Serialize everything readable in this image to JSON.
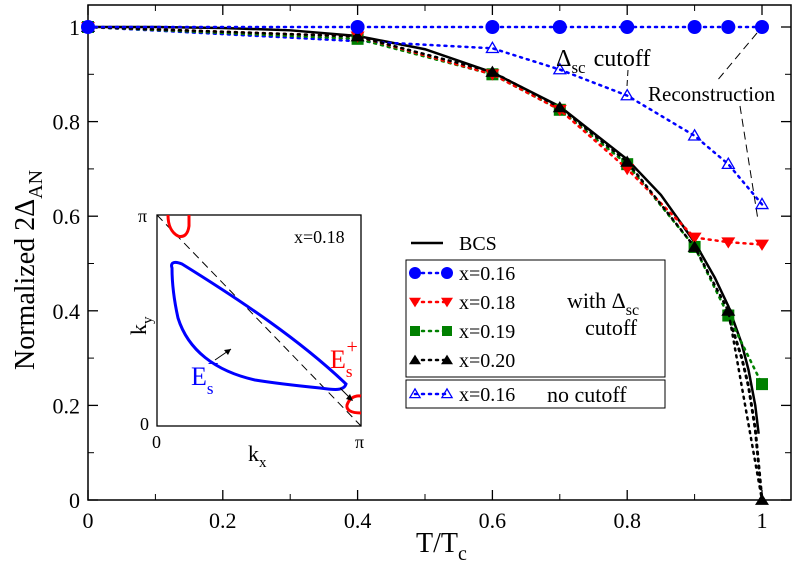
{
  "chart_data": {
    "type": "line",
    "xlabel": "T/T",
    "xlabel_sub": "c",
    "ylabel": "Normalized 2Δ",
    "ylabel_sub": "AN",
    "xlim": [
      0,
      1.04
    ],
    "ylim": [
      0,
      1.04
    ],
    "xticks": [
      {
        "v": 0,
        "label": "0"
      },
      {
        "v": 0.2,
        "label": "0.2"
      },
      {
        "v": 0.4,
        "label": "0.4"
      },
      {
        "v": 0.6,
        "label": "0.6"
      },
      {
        "v": 0.8,
        "label": "0.8"
      },
      {
        "v": 1,
        "label": "1"
      }
    ],
    "yticks": [
      {
        "v": 0,
        "label": "0"
      },
      {
        "v": 0.2,
        "label": "0.2"
      },
      {
        "v": 0.4,
        "label": "0.4"
      },
      {
        "v": 0.6,
        "label": "0.6"
      },
      {
        "v": 0.8,
        "label": "0.8"
      },
      {
        "v": 1,
        "label": "1"
      }
    ],
    "bcs": {
      "name": "BCS",
      "color": "#000000",
      "x": [
        0,
        0.1,
        0.2,
        0.3,
        0.4,
        0.5,
        0.6,
        0.7,
        0.8,
        0.85,
        0.9,
        0.93,
        0.95,
        0.97,
        0.98,
        0.99,
        0.995
      ],
      "y": [
        1,
        1,
        0.998,
        0.993,
        0.981,
        0.953,
        0.904,
        0.832,
        0.72,
        0.645,
        0.545,
        0.47,
        0.41,
        0.33,
        0.275,
        0.2,
        0.14
      ]
    },
    "bcs_dotted": {
      "x": [
        0.95,
        0.97,
        0.98,
        0.99,
        1.0
      ],
      "y": [
        0.39,
        0.3,
        0.24,
        0.15,
        0.0
      ]
    },
    "series": [
      {
        "name": "x=0.16",
        "color": "#0000ff",
        "marker": "circle",
        "x": [
          0,
          0.4,
          0.6,
          0.7,
          0.8,
          0.9,
          0.95,
          1.0
        ],
        "y": [
          1,
          1,
          1,
          1,
          1,
          1,
          1,
          1
        ]
      },
      {
        "name": "x=0.18",
        "color": "#ff0000",
        "marker": "tri-down",
        "x": [
          0,
          0.4,
          0.6,
          0.7,
          0.8,
          0.9,
          0.95,
          1.0
        ],
        "y": [
          1,
          0.98,
          0.9,
          0.825,
          0.7,
          0.555,
          0.545,
          0.54
        ]
      },
      {
        "name": "x=0.19",
        "color": "#008000",
        "marker": "square",
        "x": [
          0,
          0.4,
          0.6,
          0.7,
          0.8,
          0.9,
          0.95,
          1.0
        ],
        "y": [
          1,
          0.975,
          0.9,
          0.825,
          0.71,
          0.535,
          0.39,
          0.245
        ]
      },
      {
        "name": "x=0.20",
        "color": "#000000",
        "marker": "tri-up",
        "x": [
          0,
          0.4,
          0.6,
          0.7,
          0.8,
          0.9,
          0.95,
          1.0
        ],
        "y": [
          1,
          0.98,
          0.905,
          0.83,
          0.715,
          0.535,
          0.4,
          0.0
        ]
      },
      {
        "name": "x=0.16",
        "color": "#0000ff",
        "marker": "tri-up-open",
        "x": [
          0,
          0.6,
          0.7,
          0.8,
          0.9,
          0.95,
          1.0
        ],
        "y": [
          1,
          0.955,
          0.91,
          0.855,
          0.77,
          0.71,
          0.625
        ]
      }
    ],
    "legend": {
      "bcs_label": "BCS",
      "group_with_cutoff_label": "with Δ",
      "group_with_cutoff_sub": "sc",
      "group_with_cutoff_label2": "cutoff",
      "group_no_cutoff_label": "no cutoff"
    },
    "annotations": {
      "delta_cutoff": "Δ",
      "delta_cutoff_sub": "sc",
      "delta_cutoff_word": "cutoff",
      "reconstruction": "Reconstruction"
    },
    "inset": {
      "label_x": "x=0.18",
      "xlabel": "k",
      "xlabel_sub": "x",
      "ylabel": "k",
      "ylabel_sub": "y",
      "tick_0": "0",
      "tick_pi": "π",
      "es_minus": "E",
      "es_minus_sub": "s",
      "es_minus_sup": "−",
      "es_plus": "E",
      "es_plus_sub": "s",
      "es_plus_sup": "+",
      "minus_color": "#0000ff",
      "plus_color": "#ff0000"
    }
  }
}
